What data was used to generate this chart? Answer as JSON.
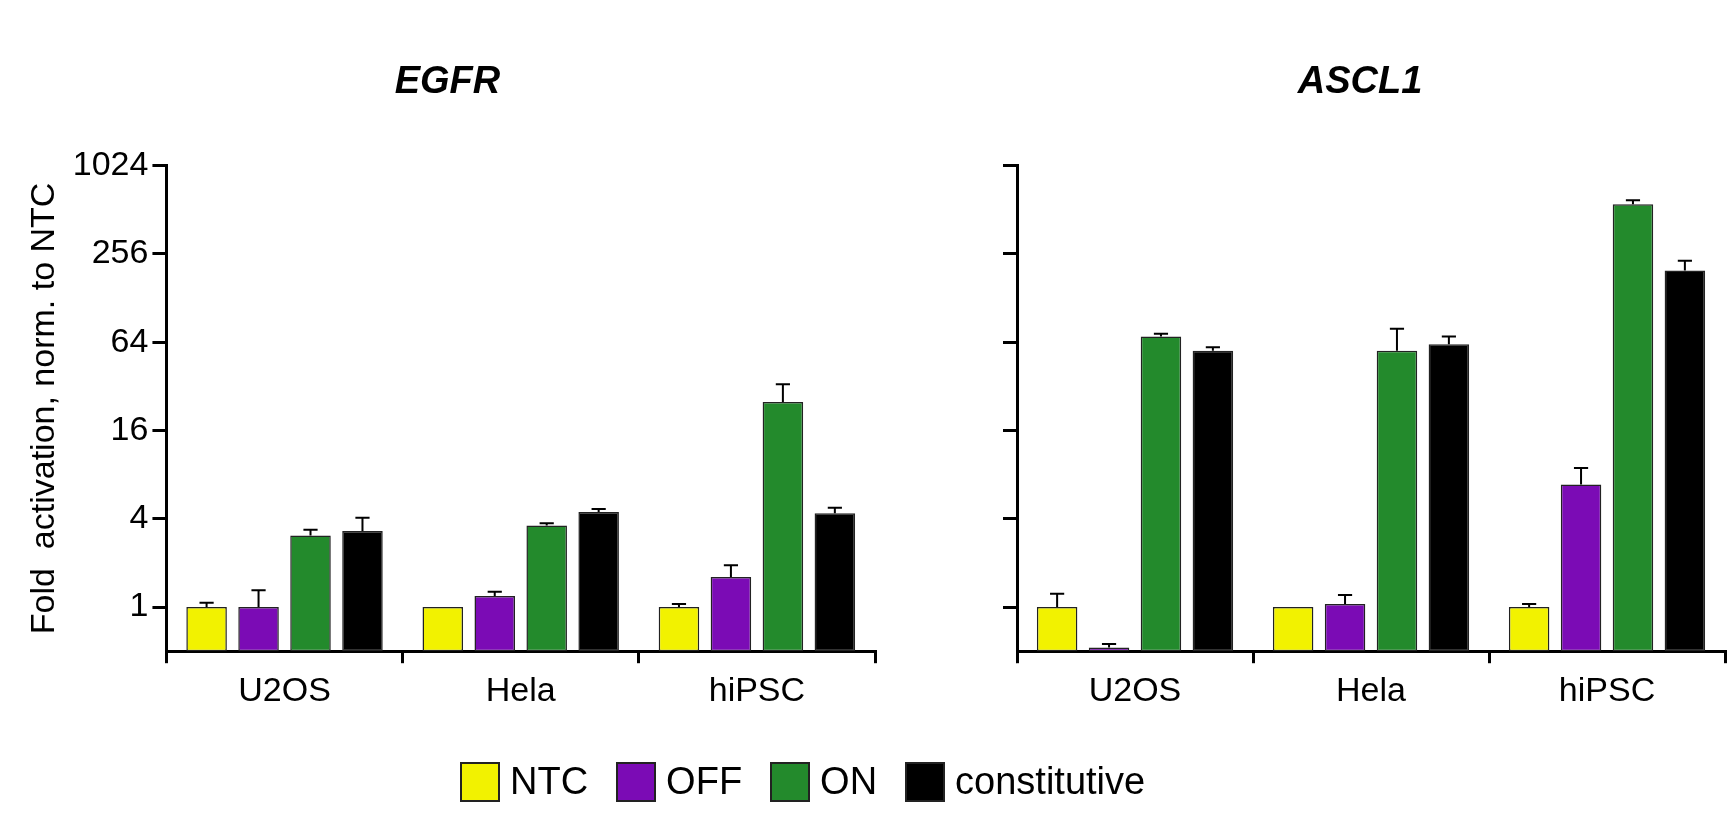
{
  "chart_data": [
    {
      "type": "bar",
      "title": "EGFR",
      "ylabel": "Fold  activation, norm. to NTC",
      "categories": [
        "U2OS",
        "Hela",
        "hiPSC"
      ],
      "log": "y",
      "ylim": [
        0.5,
        1024
      ],
      "yticks": [
        1,
        4,
        16,
        64,
        256,
        1024
      ],
      "grid": false,
      "legend": "bottom",
      "series": [
        {
          "name": "NTC",
          "color": "#f2f200",
          "values": [
            1,
            1,
            1
          ],
          "errors": [
            [
              1,
              1.07
            ],
            null,
            [
              1,
              1.05
            ]
          ]
        },
        {
          "name": "OFF",
          "color": "#7b0bb5",
          "values": [
            1,
            1.19,
            1.6
          ],
          "errors": [
            [
              1,
              1.3
            ],
            [
              1.19,
              1.27
            ],
            [
              1.6,
              1.93
            ]
          ]
        },
        {
          "name": "ON",
          "color": "#238a2c",
          "values": [
            3.08,
            3.6,
            25
          ],
          "errors": [
            [
              3.08,
              3.36
            ],
            [
              3.6,
              3.73
            ],
            [
              25,
              33
            ]
          ]
        },
        {
          "name": "constitutive",
          "color": "#000000",
          "values": [
            3.3,
            4.44,
            4.36
          ],
          "errors": [
            [
              3.3,
              4.06
            ],
            [
              4.44,
              4.67
            ],
            [
              4.36,
              4.76
            ]
          ]
        }
      ]
    },
    {
      "type": "bar",
      "title": "ASCL1",
      "categories": [
        "U2OS",
        "Hela",
        "hiPSC"
      ],
      "log": "y",
      "ylim": [
        0.5,
        1024
      ],
      "yticks": [
        1,
        4,
        16,
        64,
        256,
        1024
      ],
      "grid": false,
      "tick_labels": "x",
      "series": [
        {
          "color": "#f2f200",
          "values": [
            1,
            1,
            1
          ],
          "errors": [
            [
              1,
              1.23
            ],
            null,
            [
              1,
              1.05
            ]
          ]
        },
        {
          "color": "#7b0bb5",
          "values": [
            0.53,
            1.05,
            6.85
          ],
          "errors": [
            [
              0.53,
              0.56
            ],
            [
              1.05,
              1.21
            ],
            [
              6.85,
              8.88
            ]
          ]
        },
        {
          "color": "#238a2c",
          "values": [
            70,
            56,
            558
          ],
          "errors": [
            [
              70,
              73
            ],
            [
              56,
              79
            ],
            [
              558,
              595
            ]
          ]
        },
        {
          "color": "#000000",
          "values": [
            56,
            62,
            197
          ],
          "errors": [
            [
              56,
              59
            ],
            [
              62,
              70
            ],
            [
              197,
              230
            ]
          ]
        }
      ]
    }
  ]
}
